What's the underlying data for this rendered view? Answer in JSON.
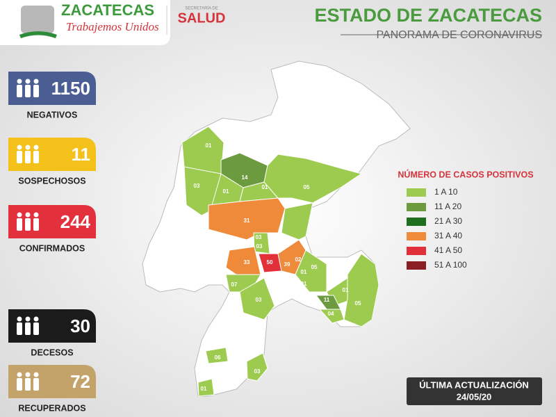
{
  "header": {
    "logo_text": "ZACATECAS",
    "slogan": "Trabajemos Unidos",
    "secretaria": "SECRETARÍA DE",
    "salud": "SALUD"
  },
  "title": "ESTADO DE ZACATECAS",
  "subtitle": "PANORAMA DE CORONAVIRUS",
  "stats": [
    {
      "value": 1150,
      "label": "NEGATIVOS",
      "color": "#4b5e93"
    },
    {
      "value": 11,
      "label": "SOSPECHOSOS",
      "color": "#f4c01a"
    },
    {
      "value": 244,
      "label": "CONFIRMADOS",
      "color": "#e3303d"
    },
    {
      "value": 30,
      "label": "DECESOS",
      "color": "#1b1b1b"
    },
    {
      "value": 72,
      "label": "RECUPERADOS",
      "color": "#c3a36a"
    }
  ],
  "legend": {
    "title": "NÚMERO DE CASOS POSITIVOS",
    "items": [
      {
        "label": "1 A 10",
        "color": "#9dcb4f"
      },
      {
        "label": "11 A 20",
        "color": "#6c9a3e"
      },
      {
        "label": "21 A 30",
        "color": "#1f6d1f"
      },
      {
        "label": "31 A 40",
        "color": "#ee8a3a"
      },
      {
        "label": "41 A 50",
        "color": "#e2303a"
      },
      {
        "label": "51 A 100",
        "color": "#8b1e22"
      }
    ]
  },
  "map": {
    "labels": [
      "01",
      "03",
      "14",
      "01",
      "01",
      "05",
      "31",
      "03",
      "03",
      "33",
      "50",
      "39",
      "02",
      "05",
      "01",
      "01",
      "07",
      "03",
      "01",
      "11",
      "05",
      "04",
      "06",
      "03",
      "01"
    ]
  },
  "update": {
    "label": "ÚLTIMA ACTUALIZACIÓN",
    "date": "24/05/20"
  }
}
